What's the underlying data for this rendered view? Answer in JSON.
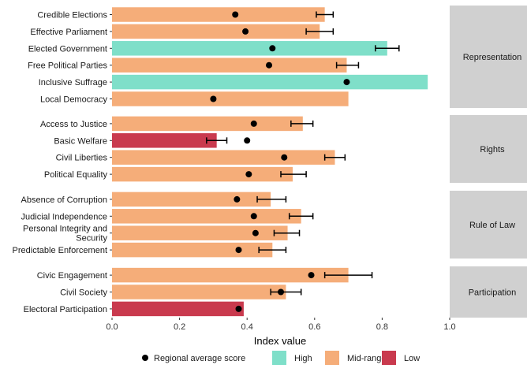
{
  "chart_data": {
    "type": "bar",
    "orientation": "horizontal",
    "xlabel": "Index value",
    "xlim": [
      0,
      1
    ],
    "xticks": [
      "0.0",
      "0.2",
      "0.4",
      "0.6",
      "0.8",
      "1.0"
    ],
    "grid": false,
    "legend_position": "bottom",
    "legend": [
      {
        "key": "avg",
        "label": "Regional average score",
        "shape": "point",
        "color": "#000000"
      },
      {
        "key": "high",
        "label": "High",
        "shape": "fill",
        "color": "#7fdfc9"
      },
      {
        "key": "mid",
        "label": "Mid-range",
        "shape": "fill",
        "color": "#f5ad79"
      },
      {
        "key": "low",
        "label": "Low",
        "shape": "fill",
        "color": "#c93a4e"
      }
    ],
    "facets": [
      {
        "name": "Representation",
        "rows": [
          {
            "label": "Credible Elections",
            "value": 0.63,
            "level": "mid",
            "avg": 0.365,
            "err": [
              0.605,
              0.655
            ]
          },
          {
            "label": "Effective Parliament",
            "value": 0.615,
            "level": "mid",
            "avg": 0.395,
            "err": [
              0.575,
              0.655
            ]
          },
          {
            "label": "Elected Government",
            "value": 0.815,
            "level": "high",
            "avg": 0.475,
            "err": [
              0.78,
              0.85
            ]
          },
          {
            "label": "Free Political Parties",
            "value": 0.695,
            "level": "mid",
            "avg": 0.465,
            "err": [
              0.665,
              0.73
            ]
          },
          {
            "label": "Inclusive Suffrage",
            "value": 0.935,
            "level": "high",
            "avg": 0.695,
            "err": null
          },
          {
            "label": "Local Democracy",
            "value": 0.7,
            "level": "mid",
            "avg": 0.3,
            "err": null
          }
        ]
      },
      {
        "name": "Rights",
        "rows": [
          {
            "label": "Access to Justice",
            "value": 0.565,
            "level": "mid",
            "avg": 0.42,
            "err": [
              0.53,
              0.595
            ]
          },
          {
            "label": "Basic Welfare",
            "value": 0.31,
            "level": "low",
            "avg": 0.4,
            "err": [
              0.28,
              0.34
            ]
          },
          {
            "label": "Civil Liberties",
            "value": 0.66,
            "level": "mid",
            "avg": 0.51,
            "err": [
              0.63,
              0.69
            ]
          },
          {
            "label": "Political Equality",
            "value": 0.535,
            "level": "mid",
            "avg": 0.405,
            "err": [
              0.5,
              0.575
            ]
          }
        ]
      },
      {
        "name": "Rule of Law",
        "rows": [
          {
            "label": "Absence of Corruption",
            "value": 0.47,
            "level": "mid",
            "avg": 0.37,
            "err": [
              0.43,
              0.515
            ]
          },
          {
            "label": "Judicial Independence",
            "value": 0.56,
            "level": "mid",
            "avg": 0.42,
            "err": [
              0.525,
              0.595
            ]
          },
          {
            "label": "Personal Integrity and\nSecurity",
            "value": 0.52,
            "level": "mid",
            "avg": 0.425,
            "err": [
              0.48,
              0.555
            ]
          },
          {
            "label": "Predictable Enforcement",
            "value": 0.475,
            "level": "mid",
            "avg": 0.375,
            "err": [
              0.435,
              0.515
            ]
          }
        ]
      },
      {
        "name": "Participation",
        "rows": [
          {
            "label": "Civic Engagement",
            "value": 0.7,
            "level": "mid",
            "avg": 0.59,
            "err": [
              0.63,
              0.77
            ]
          },
          {
            "label": "Civil Society",
            "value": 0.515,
            "level": "mid",
            "avg": 0.5,
            "err": [
              0.47,
              0.56
            ]
          },
          {
            "label": "Electoral Participation",
            "value": 0.39,
            "level": "low",
            "avg": 0.375,
            "err": null
          }
        ]
      }
    ]
  }
}
